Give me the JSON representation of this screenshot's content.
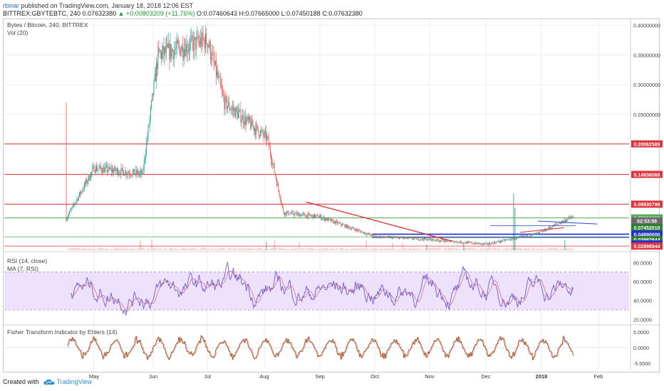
{
  "header": {
    "author": "rbinar",
    "published_text": "published on TradingView.com, January 18, 2018 12:06 EST"
  },
  "ohlc_line": {
    "symbol": "BITTREX:GBYTEBTC, 240",
    "last": "0.07632380",
    "change": "▲ +0.00803209 (+11.76%)",
    "open": "O:0.07460643",
    "high": "H:0.07665000",
    "low": "L:0.07450188",
    "close": "C:0.07632380"
  },
  "main_panel": {
    "title": "Bytes / Bitcoin, 240, BITTREX",
    "subtitle": "Vol (20)"
  },
  "rsi_panel": {
    "title": "RSI (14, close)",
    "subtitle": "MA (7, RSI)"
  },
  "fisher_panel": {
    "title": "Fisher Transform Indicator by Ehlers (14)"
  },
  "footer": {
    "created_with": "Created with",
    "brand": "TradingView"
  },
  "colors": {
    "candle_up": "#26a69a",
    "candle_down": "#ef5350",
    "hline_red": "#e0323a",
    "hline_green": "#4caf50",
    "hline_blue": "#1f2fd6",
    "trend_red": "#e0323a",
    "trend_blue": "#2a40d0",
    "rsi_line": "#6f5bd1",
    "rsi_ma": "#c04a4a",
    "rsi_band": "#e9d9fb",
    "fisher_line": "#b9471b",
    "fisher_trigger": "#6b6b6b",
    "volume": "#f1b0a8"
  },
  "chart_data": [
    {
      "type": "candlestick",
      "title": "Bytes / Bitcoin, 240, BITTREX",
      "x_tick_labels": [
        "May",
        "Jun",
        "Jul",
        "Aug",
        "Sep",
        "Oct",
        "Nov",
        "Dec",
        "2018",
        "Feb"
      ],
      "y_tick_labels": [
        "0.40000000",
        "0.35000000",
        "0.30000000",
        "0.25000000",
        "0.20000000",
        "0.15000000",
        "0.10000000"
      ],
      "ylim": [
        0.022,
        0.41
      ],
      "grid": true,
      "price_path": {
        "months": [
          {
            "label": "Apr (late)",
            "value": 0.075
          },
          {
            "label": "May",
            "value": 0.16
          },
          {
            "label": "Jun",
            "value": 0.15
          },
          {
            "label": "Jun (mid)",
            "value": 0.35
          },
          {
            "label": "Jul",
            "value": 0.375
          },
          {
            "label": "Jul (mid)",
            "value": 0.27
          },
          {
            "label": "Aug",
            "value": 0.21
          },
          {
            "label": "Aug (mid)",
            "value": 0.085
          },
          {
            "label": "Sep",
            "value": 0.078
          },
          {
            "label": "Oct",
            "value": 0.045
          },
          {
            "label": "Nov",
            "value": 0.04
          },
          {
            "label": "Dec",
            "value": 0.032
          },
          {
            "label": "2018",
            "value": 0.05
          },
          {
            "label": "last",
            "value": 0.0763
          }
        ]
      },
      "horizontal_levels": [
        {
          "label": "0.20062589",
          "value": 0.20062589,
          "color": "#e0323a"
        },
        {
          "label": "0.14936066",
          "value": 0.14936066,
          "color": "#e0323a"
        },
        {
          "label": "0.09930796",
          "value": 0.09930796,
          "color": "#e0323a"
        },
        {
          "label": "0.07632380",
          "value": 0.0763238,
          "color": "#4caf50"
        },
        {
          "label": "02:53:58",
          "value": 0.0715,
          "color": "#6a6a6a"
        },
        {
          "label": "0.07452010",
          "value": 0.0605,
          "color": "#2e7d32"
        },
        {
          "label": "0.04890000",
          "value": 0.0489,
          "color": "#1f2fd6"
        },
        {
          "label": "0.03997944",
          "value": 0.0399,
          "color": "#2e7d32"
        },
        {
          "label": "0.03810957",
          "value": 0.0326,
          "color": "#1f2fd6"
        },
        {
          "label": "0.02898944",
          "value": 0.029,
          "color": "#e0323a"
        }
      ],
      "trend_lines": [
        {
          "color": "red",
          "from": {
            "date": "Aug (late)",
            "value": 0.103
          },
          "to": {
            "date": "Nov (mid)",
            "value": 0.036
          }
        },
        {
          "color": "red",
          "from": {
            "date": "Dec (late)",
            "value": 0.052
          },
          "to": {
            "date": "Jan (mid)",
            "value": 0.06
          }
        },
        {
          "color": "blue",
          "from": {
            "date": "Jan (early)",
            "value": 0.07
          },
          "to": {
            "date": "Jan (late)",
            "value": 0.065
          }
        },
        {
          "color": "blue",
          "from": {
            "date": "Dec (early)",
            "value": 0.062
          },
          "to": {
            "date": "Jan (late)",
            "value": 0.062
          }
        }
      ]
    },
    {
      "type": "line",
      "title": "RSI (14, close)",
      "series": [
        {
          "name": "RSI (14, close)"
        },
        {
          "name": "MA (7, RSI)"
        }
      ],
      "y_tick_labels": [
        "80.0000",
        "60.0000",
        "40.0000",
        "20.0000"
      ],
      "ylim": [
        15,
        90
      ],
      "band": [
        30,
        70
      ]
    },
    {
      "type": "line",
      "title": "Fisher Transform Indicator by Ehlers (14)",
      "y_tick_labels": [
        "5.0000",
        "0.0000",
        "-5.0000"
      ],
      "ylim": [
        -7,
        7
      ]
    }
  ]
}
